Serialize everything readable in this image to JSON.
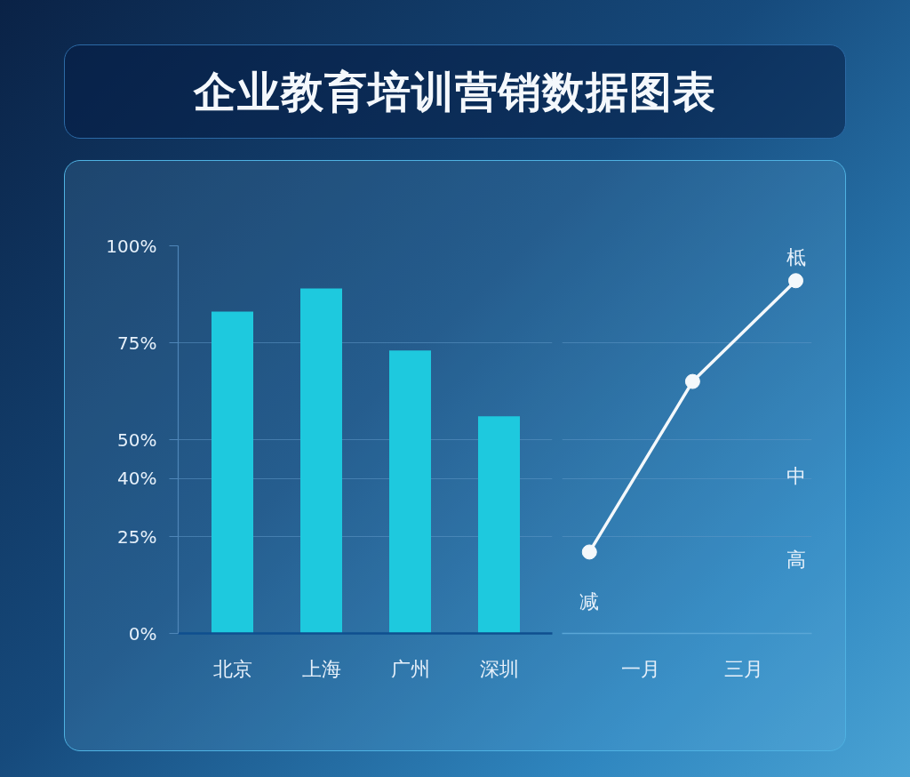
{
  "chart_data": [
    {
      "type": "bar",
      "title": "企业教育培训营销数据图表",
      "categories": [
        "北京",
        "上海",
        "广州",
        "深圳"
      ],
      "values": [
        83,
        89,
        73,
        56
      ],
      "color": "#1ec9de",
      "ylim": [
        0,
        100
      ],
      "yticks": [
        {
          "value": 0,
          "label": "0%"
        },
        {
          "value": 25,
          "label": "25%"
        },
        {
          "value": 40,
          "label": "40%"
        },
        {
          "value": 50,
          "label": "50%"
        },
        {
          "value": 75,
          "label": "75%"
        },
        {
          "value": 100,
          "label": "100%"
        }
      ],
      "grid": "y"
    },
    {
      "type": "line",
      "categories": [
        null,
        "一月",
        null,
        "三月",
        null
      ],
      "values": [
        21,
        null,
        65,
        null,
        91
      ],
      "color": "#f4f8fb",
      "marker": "circle",
      "ylim": [
        0,
        100
      ],
      "yticks": [
        {
          "value": 0,
          "label": null
        },
        {
          "value": 25,
          "label": null
        },
        {
          "value": 40,
          "label": null
        },
        {
          "value": 50,
          "label": null
        },
        {
          "value": 75,
          "label": null
        },
        {
          "value": 100,
          "label": null
        }
      ],
      "grid": "y",
      "tick_labels": "x",
      "annotations": [
        "柢",
        "中",
        "高",
        "减"
      ]
    }
  ]
}
